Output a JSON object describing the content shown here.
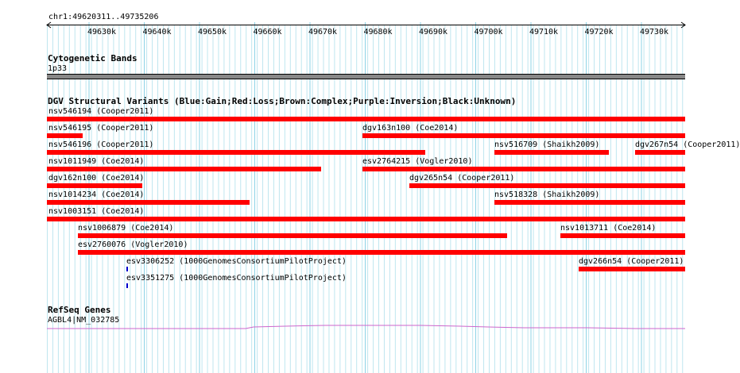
{
  "ruler": {
    "label": "chr1:49620311..49735206",
    "ticks": [
      "49630k",
      "49640k",
      "49650k",
      "49660k",
      "49670k",
      "49680k",
      "49690k",
      "49700k",
      "49710k",
      "49720k",
      "49730k"
    ]
  },
  "cytoband": {
    "title": "Cytogenetic Bands",
    "band_label": "1p33"
  },
  "dgv": {
    "title": "DGV Structural Variants (Blue:Gain;Red:Loss;Brown:Complex;Purple:Inversion;Black:Unknown)",
    "colors": {
      "loss": "#ff0000",
      "gain": "#0000cc"
    },
    "features": [
      {
        "label": "nsv546194 (Cooper2011)",
        "type": "loss"
      },
      {
        "label": "nsv546195 (Cooper2011)",
        "type": "loss"
      },
      {
        "label": "dgv163n100 (Coe2014)",
        "type": "loss"
      },
      {
        "label": "nsv546196 (Cooper2011)",
        "type": "loss"
      },
      {
        "label": "nsv516709 (Shaikh2009)",
        "type": "loss"
      },
      {
        "label": "dgv267n54 (Cooper2011)",
        "type": "loss"
      },
      {
        "label": "nsv1011949 (Coe2014)",
        "type": "loss"
      },
      {
        "label": "esv2764215 (Vogler2010)",
        "type": "loss"
      },
      {
        "label": "dgv162n100 (Coe2014)",
        "type": "loss"
      },
      {
        "label": "dgv265n54 (Cooper2011)",
        "type": "loss"
      },
      {
        "label": "nsv1014234 (Coe2014)",
        "type": "loss"
      },
      {
        "label": "nsv518328 (Shaikh2009)",
        "type": "loss"
      },
      {
        "label": "nsv1003151 (Coe2014)",
        "type": "loss"
      },
      {
        "label": "nsv1006879 (Coe2014)",
        "type": "loss"
      },
      {
        "label": "nsv1013711 (Coe2014)",
        "type": "loss"
      },
      {
        "label": "esv2760076 (Vogler2010)",
        "type": "loss"
      },
      {
        "label": "esv3306252 (1000GenomesConsortiumPilotProject)",
        "type": "gain"
      },
      {
        "label": "dgv266n54 (Cooper2011)",
        "type": "loss"
      },
      {
        "label": "esv3351275 (1000GenomesConsortiumPilotProject)",
        "type": "gain"
      }
    ]
  },
  "refseq": {
    "title": "RefSeq Genes",
    "gene_label": "AGBL4|NM_032785",
    "color": "#cc66cc"
  }
}
